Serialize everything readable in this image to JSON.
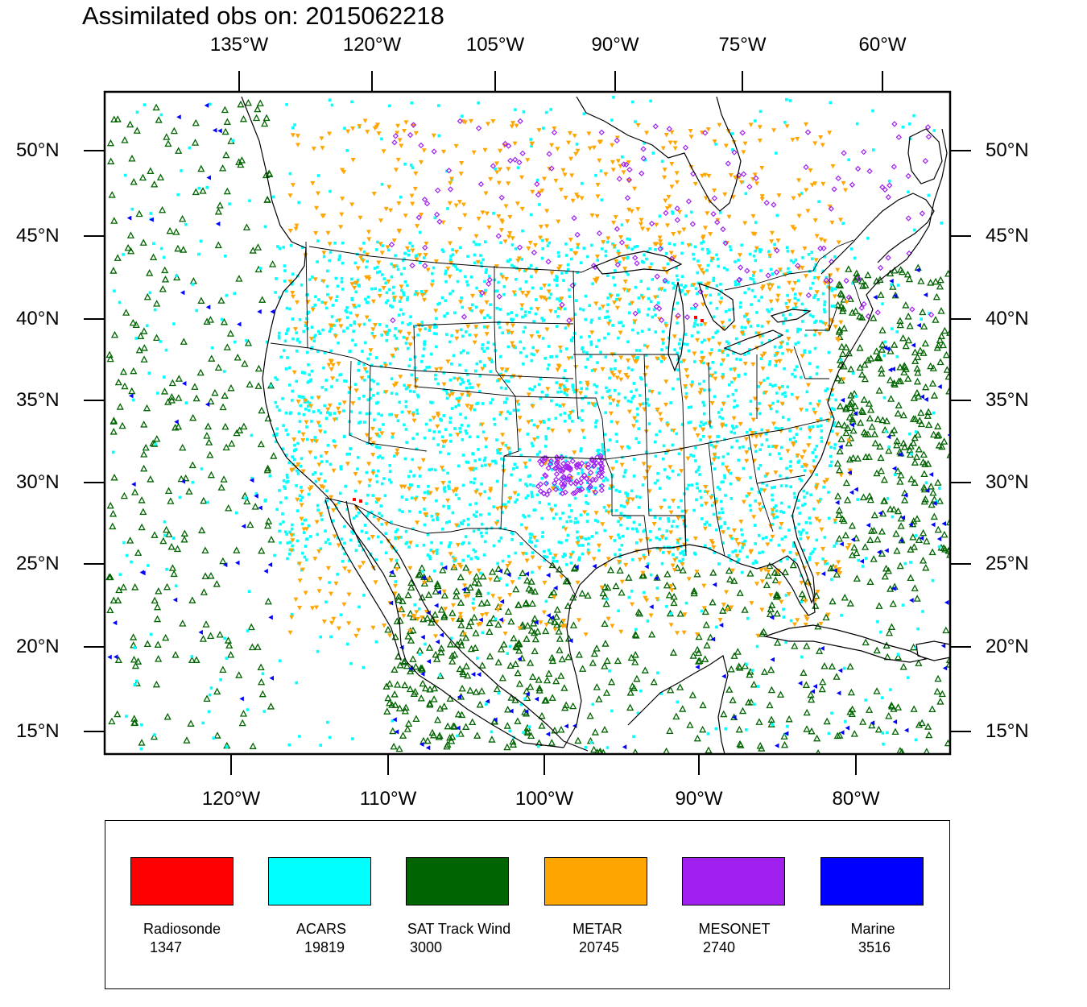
{
  "map": {
    "title": "Assimilated obs on: 2015062218",
    "top_ticks": [
      "135°W",
      "120°W",
      "105°W",
      "90°W",
      "75°W",
      "60°W"
    ],
    "bottom_ticks": [
      "120°W",
      "110°W",
      "100°W",
      "90°W",
      "80°W"
    ],
    "left_ticks": [
      "50°N",
      "45°N",
      "40°N",
      "35°N",
      "30°N",
      "25°N",
      "20°N",
      "15°N"
    ],
    "right_ticks": [
      "50°N",
      "45°N",
      "40°N",
      "35°N",
      "30°N",
      "25°N",
      "20°N",
      "15°N"
    ]
  },
  "legend": {
    "items": [
      {
        "name": "Radiosonde",
        "count": "1347",
        "color": "#ff0000"
      },
      {
        "name": "ACARS",
        "count": "19819",
        "color": "#00ffff"
      },
      {
        "name": "SAT Track Wind",
        "count": "3000",
        "color": "#006400"
      },
      {
        "name": "METAR",
        "count": "20745",
        "color": "#ffa500"
      },
      {
        "name": "MESONET",
        "count": "2740",
        "color": "#a020f0"
      },
      {
        "name": "Marine",
        "count": "3516",
        "color": "#0000ff"
      }
    ]
  }
}
